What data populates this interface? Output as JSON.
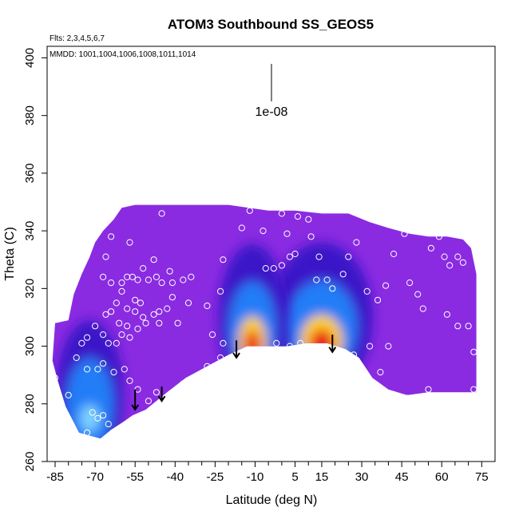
{
  "chart_data": {
    "type": "heatmap",
    "title": "ATOM3 Southbound SS_GEOS5",
    "xlabel": "Latitude (deg N)",
    "ylabel": "Theta (C)",
    "xlim": [
      -88,
      80
    ],
    "ylim": [
      260,
      404
    ],
    "x_ticks": [
      -85,
      -70,
      -55,
      -40,
      -25,
      -10,
      5,
      15,
      30,
      45,
      60,
      75
    ],
    "x_minor_ticks": [
      -80,
      -75,
      -65,
      -60,
      -50,
      -45,
      -35,
      -30,
      -20,
      -15,
      -5,
      0,
      10,
      20,
      25,
      35,
      40,
      50,
      55,
      65,
      70
    ],
    "y_ticks": [
      260,
      280,
      300,
      320,
      340,
      360,
      380,
      400
    ],
    "flights_note": "Flts: 2,3,4,5,6,7",
    "dates_note": "MMDD: 1001,1004,1006,1008,1011,1014",
    "scale_label": "1e-08",
    "colors": {
      "background_field": "#8a2be2",
      "low": "#3a12c8",
      "mid": "#1e90ff",
      "high": "#ffd21e",
      "peak": "#e8141a",
      "samples": "#ffffff",
      "arrows": "#000000"
    },
    "upper_boundary": [
      [
        -85,
        308
      ],
      [
        -80,
        309
      ],
      [
        -78,
        318
      ],
      [
        -75,
        325
      ],
      [
        -72,
        331
      ],
      [
        -70,
        336
      ],
      [
        -67,
        340
      ],
      [
        -63,
        344
      ],
      [
        -60,
        348
      ],
      [
        -55,
        349
      ],
      [
        -40,
        349
      ],
      [
        -20,
        349
      ],
      [
        -5,
        347
      ],
      [
        5,
        347
      ],
      [
        15,
        346
      ],
      [
        25,
        346
      ],
      [
        33,
        343
      ],
      [
        40,
        341
      ],
      [
        48,
        339
      ],
      [
        55,
        338
      ],
      [
        62,
        338
      ],
      [
        68,
        337
      ],
      [
        71,
        334
      ],
      [
        73,
        325
      ],
      [
        73,
        312
      ],
      [
        73,
        300
      ],
      [
        73,
        284
      ]
    ],
    "lower_boundary": [
      [
        73,
        284
      ],
      [
        55,
        284
      ],
      [
        47,
        283
      ],
      [
        40,
        285
      ],
      [
        34,
        289
      ],
      [
        29,
        296
      ],
      [
        24,
        299
      ],
      [
        17,
        301
      ],
      [
        9,
        301
      ],
      [
        2,
        300
      ],
      [
        -5,
        300
      ],
      [
        -13,
        300
      ],
      [
        -20,
        297
      ],
      [
        -28,
        293
      ],
      [
        -36,
        289
      ],
      [
        -43,
        284
      ],
      [
        -51,
        278
      ],
      [
        -56,
        276
      ],
      [
        -59,
        274
      ],
      [
        -64,
        271
      ],
      [
        -68,
        268
      ],
      [
        -72,
        269
      ],
      [
        -76,
        270
      ],
      [
        -81,
        279
      ],
      [
        -84,
        288
      ],
      [
        -86,
        295
      ],
      [
        -85,
        308
      ]
    ],
    "enhancements": [
      {
        "name": "north",
        "lat": 15,
        "theta": 302,
        "level": 1.0,
        "width": 6,
        "height": 4
      },
      {
        "name": "center",
        "lat": -11,
        "theta": 301.5,
        "level": 0.9,
        "width": 4,
        "height": 4
      },
      {
        "name": "south",
        "lat": -72,
        "theta": 275,
        "level": 0.45,
        "width": 4,
        "height": 4
      }
    ],
    "arrows": [
      {
        "lat": -55,
        "theta_top": 285,
        "theta_bottom": 278
      },
      {
        "lat": -45,
        "theta_top": 286,
        "theta_bottom": 281
      },
      {
        "lat": -17,
        "theta_top": 302,
        "theta_bottom": 296
      },
      {
        "lat": 19,
        "theta_top": 304,
        "theta_bottom": 298
      }
    ],
    "sample_points": [
      [
        -45,
        346
      ],
      [
        -57,
        336
      ],
      [
        -64,
        338
      ],
      [
        -66,
        331
      ],
      [
        -67,
        324
      ],
      [
        -64,
        322
      ],
      [
        -60,
        322
      ],
      [
        -58,
        324
      ],
      [
        -56,
        324
      ],
      [
        -54,
        323
      ],
      [
        -50,
        323
      ],
      [
        -47,
        324
      ],
      [
        -45,
        322
      ],
      [
        -41,
        322
      ],
      [
        -37,
        323
      ],
      [
        -34,
        324
      ],
      [
        -55,
        316
      ],
      [
        -53,
        315
      ],
      [
        -58,
        313
      ],
      [
        -55,
        312
      ],
      [
        -52,
        310
      ],
      [
        -62,
        315
      ],
      [
        -64,
        312
      ],
      [
        -66,
        311
      ],
      [
        -61,
        308
      ],
      [
        -58,
        307
      ],
      [
        -54,
        306
      ],
      [
        -51,
        308
      ],
      [
        -48,
        311
      ],
      [
        -46,
        312
      ],
      [
        -43,
        313
      ],
      [
        -39,
        308
      ],
      [
        -46,
        308
      ],
      [
        -57,
        303
      ],
      [
        -60,
        304
      ],
      [
        -62,
        301
      ],
      [
        -65,
        301
      ],
      [
        -67,
        304
      ],
      [
        -70,
        307
      ],
      [
        -73,
        303
      ],
      [
        -75,
        301
      ],
      [
        -77,
        296
      ],
      [
        -73,
        292
      ],
      [
        -69,
        292
      ],
      [
        -67,
        294
      ],
      [
        -63,
        291
      ],
      [
        -59,
        292
      ],
      [
        -57,
        288
      ],
      [
        -54,
        285
      ],
      [
        -50,
        281
      ],
      [
        -47,
        284
      ],
      [
        -37,
        287
      ],
      [
        -28,
        293
      ],
      [
        -23,
        296
      ],
      [
        -22,
        301
      ],
      [
        -26,
        304
      ],
      [
        -28,
        314
      ],
      [
        -23,
        319
      ],
      [
        -22,
        330
      ],
      [
        -15,
        341
      ],
      [
        -12,
        347
      ],
      [
        -10,
        349
      ],
      [
        -7,
        340
      ],
      [
        -6,
        327
      ],
      [
        -3,
        327
      ],
      [
        0,
        328
      ],
      [
        3,
        331
      ],
      [
        5,
        332
      ],
      [
        2,
        339
      ],
      [
        0,
        346
      ],
      [
        -2,
        349
      ],
      [
        6,
        345
      ],
      [
        10,
        344
      ],
      [
        11,
        338
      ],
      [
        14,
        331
      ],
      [
        13,
        323
      ],
      [
        17,
        323
      ],
      [
        19,
        320
      ],
      [
        23,
        325
      ],
      [
        25,
        331
      ],
      [
        28,
        336
      ],
      [
        30,
        346
      ],
      [
        26,
        347
      ],
      [
        32,
        319
      ],
      [
        36,
        316
      ],
      [
        39,
        321
      ],
      [
        42,
        332
      ],
      [
        46,
        339
      ],
      [
        48,
        322
      ],
      [
        51,
        318
      ],
      [
        53,
        313
      ],
      [
        56,
        334
      ],
      [
        59,
        338
      ],
      [
        61,
        331
      ],
      [
        63,
        328
      ],
      [
        66,
        331
      ],
      [
        68,
        329
      ],
      [
        62,
        311
      ],
      [
        66,
        307
      ],
      [
        70,
        307
      ],
      [
        72,
        298
      ],
      [
        72,
        285
      ],
      [
        55,
        285
      ],
      [
        47,
        282
      ],
      [
        37,
        291
      ],
      [
        40,
        300
      ],
      [
        33,
        300
      ],
      [
        27,
        297
      ],
      [
        7,
        301
      ],
      [
        3,
        300
      ],
      [
        -2,
        301
      ],
      [
        -87,
        293
      ],
      [
        -85,
        289
      ],
      [
        -80,
        283
      ],
      [
        -71,
        277
      ],
      [
        -69,
        275
      ],
      [
        -67,
        276
      ],
      [
        -65,
        273
      ],
      [
        -73,
        270
      ],
      [
        -78,
        271
      ],
      [
        -60,
        319
      ],
      [
        -35,
        315
      ],
      [
        -41,
        317
      ],
      [
        -52,
        327
      ],
      [
        -48,
        330
      ],
      [
        -42,
        326
      ]
    ]
  }
}
